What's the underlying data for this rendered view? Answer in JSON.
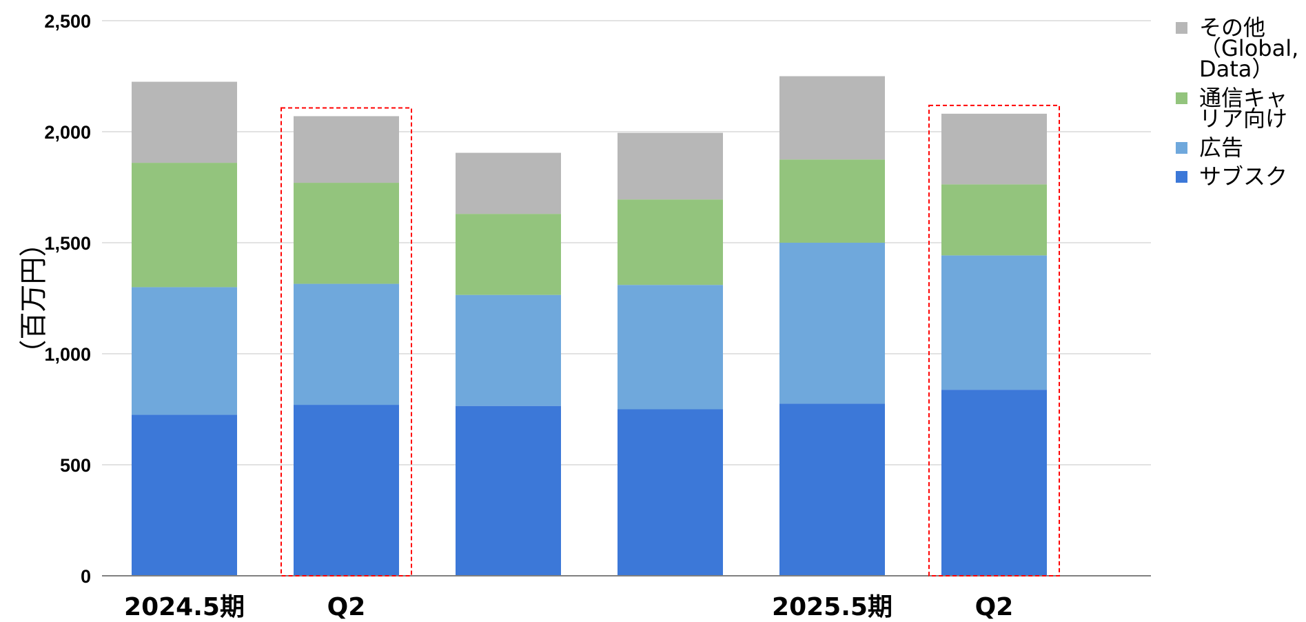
{
  "chart_data": {
    "type": "bar",
    "stacked": true,
    "categories": [
      "2024.5期",
      "Q2",
      "",
      "",
      "2025.5期",
      "Q2"
    ],
    "series": [
      {
        "name": "サブスク",
        "color": "#3c78d8",
        "values": [
          725,
          770,
          765,
          750,
          775,
          838
        ]
      },
      {
        "name": "広告",
        "color": "#6fa8dc",
        "values": [
          575,
          545,
          500,
          560,
          725,
          605
        ]
      },
      {
        "name": "通信キャリア向け",
        "color": "#93c47d",
        "values": [
          560,
          455,
          365,
          385,
          375,
          320
        ]
      },
      {
        "name": "その他（Global, Data）",
        "color": "#b7b7b7",
        "values": [
          365,
          300,
          275,
          300,
          375,
          318
        ]
      }
    ],
    "ylabel": "（百万円）",
    "xlabel": "",
    "ylim": [
      0,
      2500
    ],
    "yticks": [
      0,
      500,
      1000,
      1500,
      2000,
      2500
    ],
    "ytick_labels": [
      "0",
      "500",
      "1,000",
      "1,500",
      "2,000",
      "2,500"
    ],
    "grid": true,
    "legend_position": "right",
    "highlighted_categories": [
      1,
      5
    ],
    "highlight_color": "#ff0000"
  },
  "legend": {
    "entries": [
      {
        "lines": [
          "その他",
          "（Global,",
          "Data）"
        ],
        "color": "#b7b7b7"
      },
      {
        "lines": [
          "通信キャ",
          "リア向け"
        ],
        "color": "#93c47d"
      },
      {
        "lines": [
          "広告"
        ],
        "color": "#6fa8dc"
      },
      {
        "lines": [
          "サブスク"
        ],
        "color": "#3c78d8"
      }
    ]
  }
}
